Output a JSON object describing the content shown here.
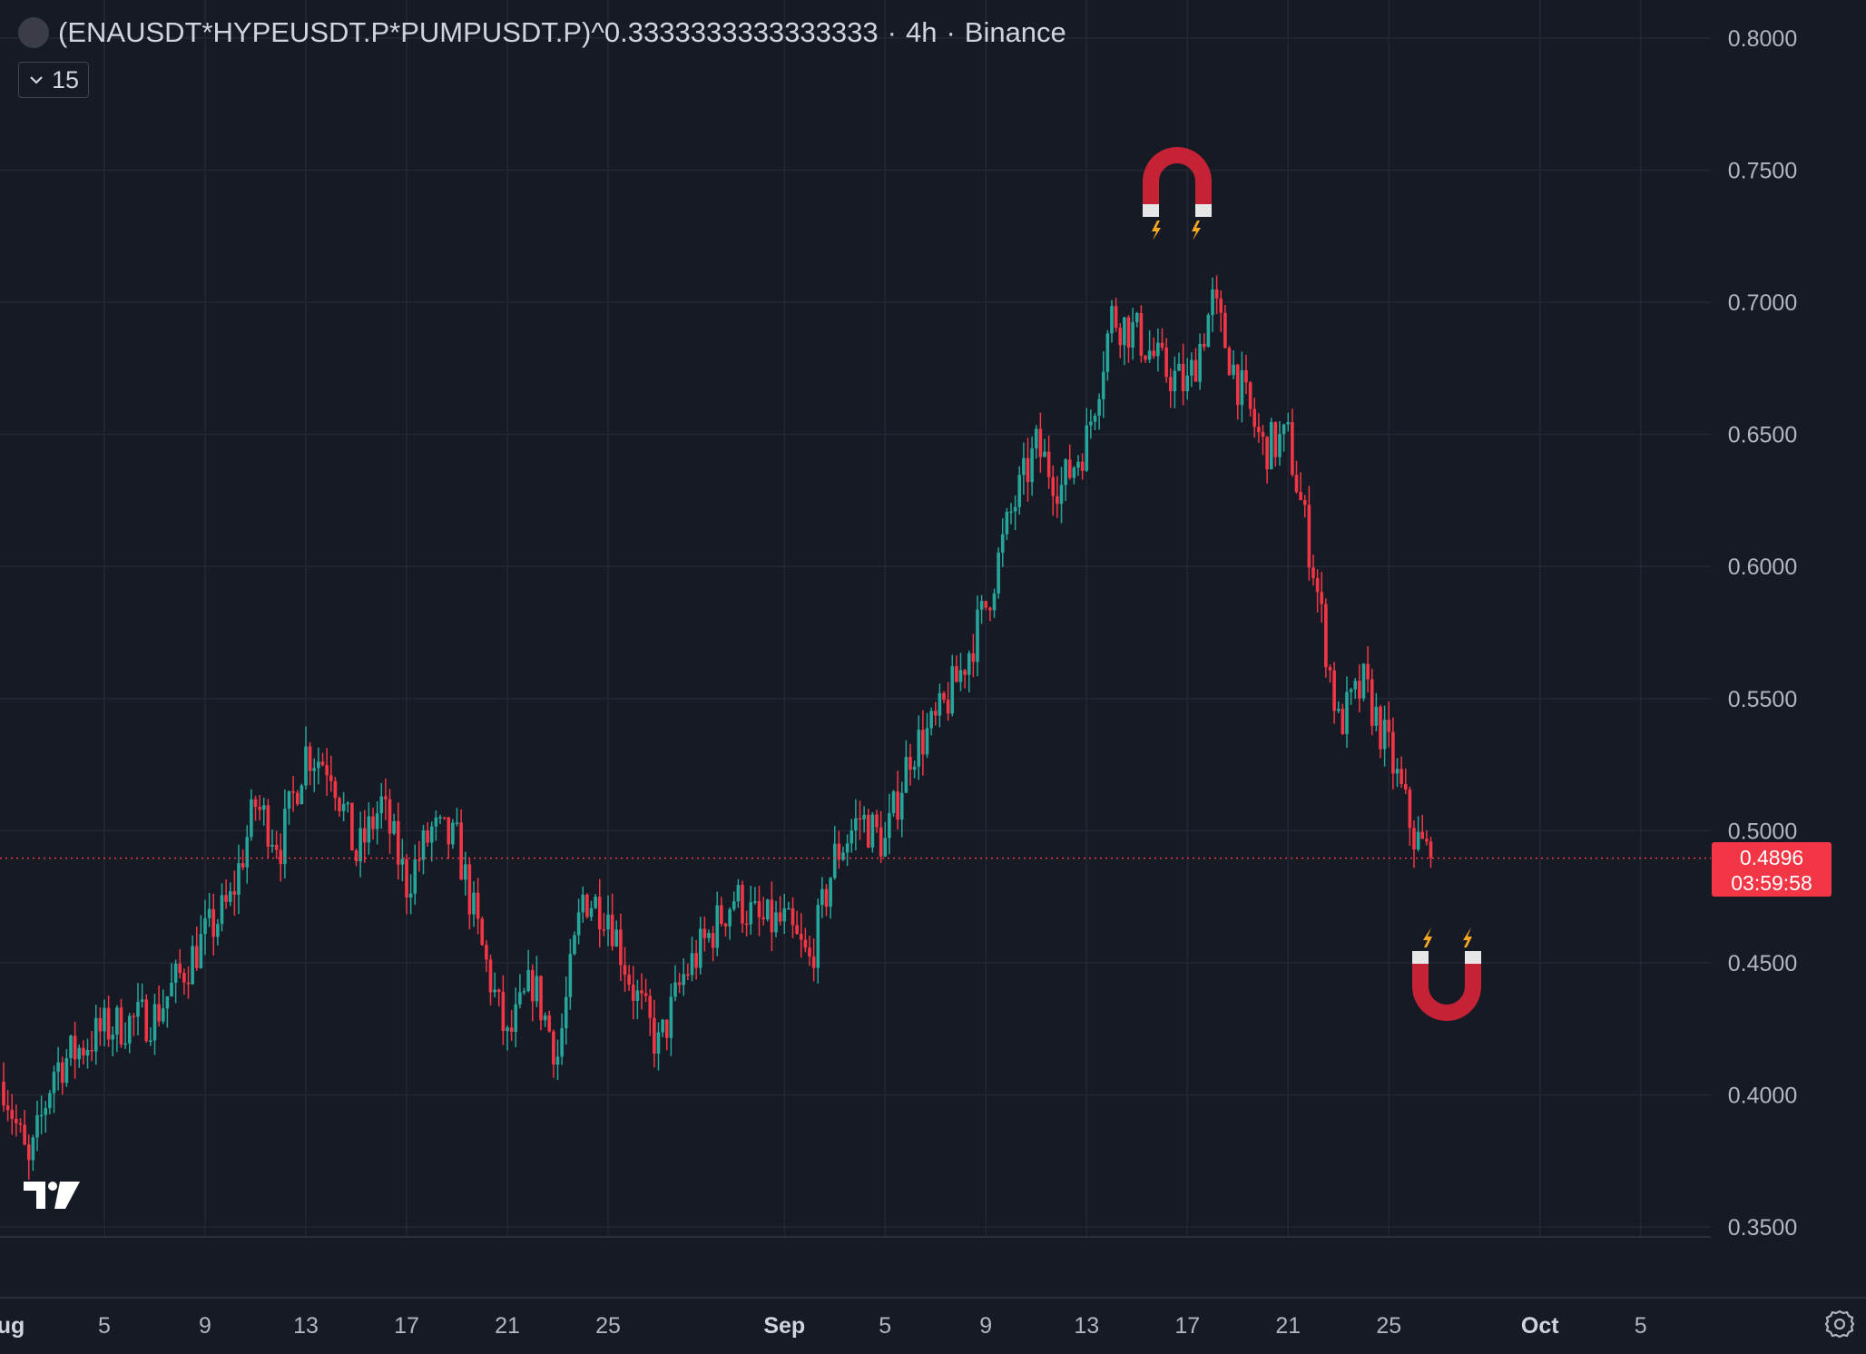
{
  "header": {
    "symbol_text": "(ENAUSDT*HYPEUSDT.P*PUMPUSDT.P)^0.3333333333333333",
    "interval": "4h",
    "exchange": "Binance",
    "separator": "·",
    "logo_glyph": "("
  },
  "interval_dropdown": {
    "count_label": "15",
    "icon": "chevron-down-icon"
  },
  "last_price": {
    "value": "0.4896",
    "countdown": "03:59:58",
    "color": "#F23645"
  },
  "colors": {
    "up": "#26A69A",
    "down": "#F23645",
    "background": "#161A25",
    "grid": "#232733",
    "text": "#D1D4DC",
    "magnet_red": "#C62235",
    "bolt": "#F5A623"
  },
  "chart_data": {
    "type": "candlestick",
    "x_axis_ticks": [
      "ug",
      "5",
      "9",
      "13",
      "17",
      "21",
      "25",
      "Sep",
      "5",
      "9",
      "13",
      "17",
      "21",
      "25",
      "Oct",
      "5"
    ],
    "y_axis_ticks": [
      "0.8000",
      "0.7500",
      "0.7000",
      "0.6500",
      "0.6000",
      "0.5500",
      "0.5000",
      "0.4500",
      "0.4000",
      "0.3500"
    ],
    "ylim": [
      0.35,
      0.8
    ],
    "grid": true,
    "annotations": [
      "magnet-top-icon at Sep 16 near 0.74",
      "magnet-bottom-icon at Sep 27 near 0.44"
    ],
    "anchors": [
      [
        "Aug 1",
        0.405
      ],
      [
        "Aug 2",
        0.372
      ],
      [
        "Aug 3",
        0.41
      ],
      [
        "Aug 5",
        0.425
      ],
      [
        "Aug 7",
        0.43
      ],
      [
        "Aug 9",
        0.46
      ],
      [
        "Aug 10",
        0.473
      ],
      [
        "Aug 11",
        0.51
      ],
      [
        "Aug 12",
        0.495
      ],
      [
        "Aug 13",
        0.53
      ],
      [
        "Aug 14",
        0.525
      ],
      [
        "Aug 15",
        0.49
      ],
      [
        "Aug 16",
        0.51
      ],
      [
        "Aug 17",
        0.48
      ],
      [
        "Aug 18",
        0.5
      ],
      [
        "Aug 19",
        0.495
      ],
      [
        "Aug 20",
        0.455
      ],
      [
        "Aug 21",
        0.42
      ],
      [
        "Aug 22",
        0.443
      ],
      [
        "Aug 23",
        0.415
      ],
      [
        "Aug 24",
        0.475
      ],
      [
        "Aug 25",
        0.47
      ],
      [
        "Aug 26",
        0.44
      ],
      [
        "Aug 27",
        0.418
      ],
      [
        "Aug 28",
        0.445
      ],
      [
        "Aug 29",
        0.46
      ],
      [
        "Aug 30",
        0.475
      ],
      [
        "Aug 31",
        0.465
      ],
      [
        "Sep 1",
        0.465
      ],
      [
        "Sep 2",
        0.45
      ],
      [
        "Sep 3",
        0.49
      ],
      [
        "Sep 4",
        0.505
      ],
      [
        "Sep 5",
        0.495
      ],
      [
        "Sep 6",
        0.53
      ],
      [
        "Sep 7",
        0.54
      ],
      [
        "Sep 8",
        0.56
      ],
      [
        "Sep 9",
        0.585
      ],
      [
        "Sep 10",
        0.62
      ],
      [
        "Sep 11",
        0.645
      ],
      [
        "Sep 12",
        0.63
      ],
      [
        "Sep 13",
        0.648
      ],
      [
        "Sep 14",
        0.695
      ],
      [
        "Sep 15",
        0.688
      ],
      [
        "Sep 16",
        0.675
      ],
      [
        "Sep 17",
        0.668
      ],
      [
        "Sep 18",
        0.7
      ],
      [
        "Sep 19",
        0.67
      ],
      [
        "Sep 20",
        0.645
      ],
      [
        "Sep 21",
        0.648
      ],
      [
        "Sep 22",
        0.6
      ],
      [
        "Sep 23",
        0.54
      ],
      [
        "Sep 24",
        0.555
      ],
      [
        "Sep 25",
        0.53
      ],
      [
        "Sep 26",
        0.498
      ],
      [
        "Sep 26 16:00",
        0.4896
      ]
    ]
  }
}
